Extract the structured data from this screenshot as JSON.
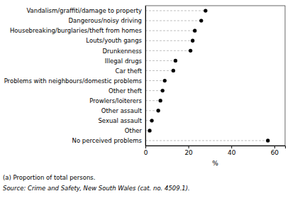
{
  "chart_data": {
    "type": "dot",
    "orientation": "horizontal",
    "categories": [
      "Vandalism/graffiti/damage to property",
      "Dangerous/noisy driving",
      "Housebreaking/burglaries/theft from homes",
      "Louts/youth gangs",
      "Drunkenness",
      "Illegal drugs",
      "Car theft",
      "Problems with neighbours/domestic problems",
      "Other theft",
      "Prowlers/loiterers",
      "Other assault",
      "Sexual assault",
      "Other",
      "No perceived problems"
    ],
    "values": [
      28,
      26,
      23,
      22,
      21,
      14,
      13,
      9,
      8,
      7,
      6,
      3,
      2,
      57
    ],
    "color": "#000000",
    "marker": "circle",
    "line_style": "dashed",
    "xlim": [
      0,
      65
    ],
    "xticks": [
      0,
      20,
      40,
      60
    ],
    "xlabel": "%",
    "grid": false,
    "annotations": [
      "(a) Proportion of total persons.",
      "Source: Crime and Safety, New South Wales (cat. no. 4509.1)."
    ]
  }
}
